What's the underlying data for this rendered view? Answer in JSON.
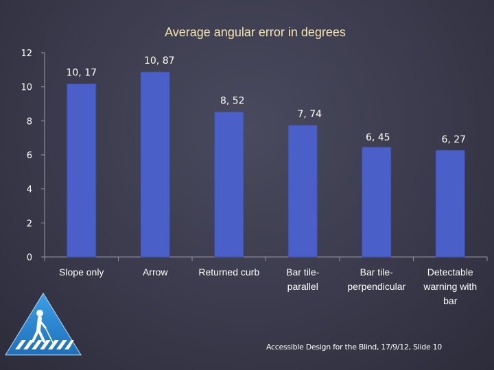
{
  "chart_data": {
    "type": "bar",
    "title": "Average angular error in degrees",
    "categories": [
      [
        "Slope only"
      ],
      [
        "Arrow"
      ],
      [
        "Returned curb"
      ],
      [
        "Bar tile-",
        "parallel"
      ],
      [
        "Bar tile-",
        "perpendicular"
      ],
      [
        "Detectable",
        "warning with",
        "bar"
      ]
    ],
    "values": [
      10.17,
      10.87,
      8.52,
      7.74,
      6.45,
      6.27
    ],
    "value_labels": [
      "10, 17",
      "10, 87",
      "8, 52",
      "7, 74",
      "6, 45",
      "6, 27"
    ],
    "ylim": [
      0,
      12
    ],
    "yticks": [
      "0",
      "2",
      "4",
      "6",
      "8",
      "10",
      "12"
    ],
    "grid": false,
    "xlabel": "",
    "ylabel": ""
  },
  "footer": {
    "text": "Accessible Design for the Blind, 17/9/12, Slide 10"
  },
  "colors": {
    "bar": "#4a60c8",
    "bar_edge": "#3b4fae",
    "axis": "#9a9aa8",
    "title": "#f6e3b0",
    "label": "#ffffff",
    "logo_blue": "#2f8fd8"
  },
  "logo": {
    "icon": "pedestrian-crossing-logo"
  }
}
